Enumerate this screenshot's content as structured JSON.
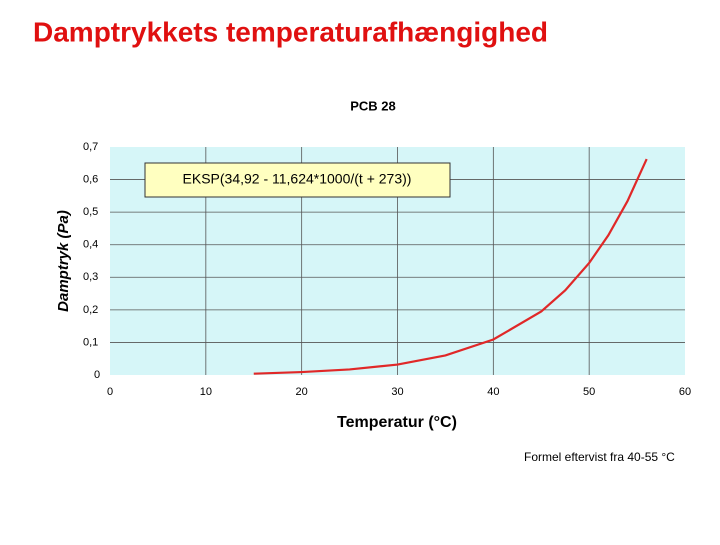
{
  "header": {
    "title": "Damptrykkets temperaturafhængighed"
  },
  "chart_data": {
    "type": "line",
    "title": "PCB 28",
    "x_label": "Temperatur (°C)",
    "y_label": "Damptryk (Pa)",
    "annotation": "EKSP(34,92 - 11,624*1000/(t + 273))",
    "x": [
      15,
      20,
      25,
      30,
      35,
      40,
      45,
      47.5,
      50,
      52,
      54,
      56
    ],
    "series": [
      {
        "name": "PCB 28",
        "color": "#e02828",
        "values": [
          0.004,
          0.009,
          0.017,
          0.032,
          0.06,
          0.109,
          0.195,
          0.26,
          0.344,
          0.429,
          0.534,
          0.663
        ]
      }
    ],
    "xlim": [
      0,
      60
    ],
    "xticks": [
      0,
      10,
      20,
      30,
      40,
      50,
      60
    ],
    "ylim": [
      0,
      0.7
    ],
    "yticks": [
      0,
      {
        "value": 0.1,
        "label": "0,1"
      },
      {
        "value": 0.2,
        "label": "0,2"
      },
      {
        "value": 0.3,
        "label": "0,3"
      },
      {
        "value": 0.4,
        "label": "0,4"
      },
      {
        "value": 0.5,
        "label": "0,5"
      },
      {
        "value": 0.6,
        "label": "0,6"
      },
      {
        "value": 0.7,
        "label": "0,7"
      }
    ],
    "grid": true,
    "background": "#d6f6f8"
  },
  "footnote": "Formel eftervist fra 40-55 °C"
}
